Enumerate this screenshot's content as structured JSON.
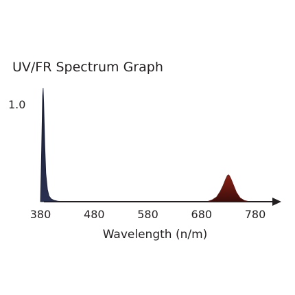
{
  "chart_data": {
    "type": "area",
    "title": "UV/FR Spectrum Graph",
    "xlabel": "Wavelength (n/m)",
    "ylabel": "",
    "xlim": [
      380,
      810
    ],
    "ylim": [
      0,
      1.25
    ],
    "x_ticks": [
      "380",
      "480",
      "580",
      "680",
      "780"
    ],
    "y_ticks": [
      "1.0"
    ],
    "grid": false,
    "legend": "none",
    "series": [
      {
        "color": "#1a1e33",
        "peak_wavelength": 385,
        "x": [
          380,
          382,
          384,
          385,
          386,
          388,
          390,
          393,
          396,
          400,
          405,
          412,
          420,
          430
        ],
        "values": [
          0.0,
          0.55,
          1.12,
          1.2,
          1.05,
          0.6,
          0.3,
          0.13,
          0.06,
          0.03,
          0.015,
          0.006,
          0.002,
          0.0
        ]
      },
      {
        "color": "#6e1a14",
        "peak_wavelength": 730,
        "x": [
          690,
          700,
          708,
          715,
          720,
          725,
          728,
          730,
          732,
          735,
          740,
          745,
          752,
          760,
          770
        ],
        "values": [
          0.0,
          0.02,
          0.05,
          0.11,
          0.17,
          0.24,
          0.275,
          0.285,
          0.275,
          0.24,
          0.17,
          0.1,
          0.04,
          0.012,
          0.0
        ]
      }
    ]
  }
}
